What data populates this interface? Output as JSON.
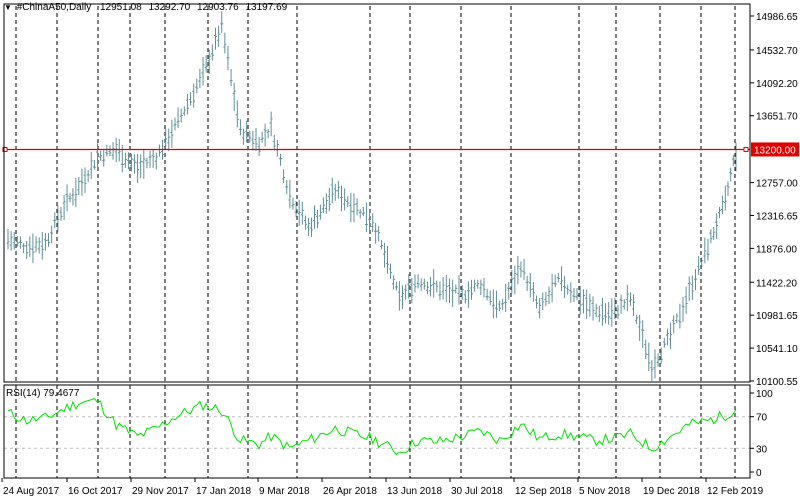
{
  "header": {
    "symbol": "#ChinaA50,Daily",
    "open": "12951.08",
    "high": "13292.70",
    "low": "12903.76",
    "close": "13197.69"
  },
  "indicator": {
    "name": "RSI(14)",
    "value": "79.4677"
  },
  "colors": {
    "price_bars": "#5f8f99",
    "level_line": "#e00000",
    "rsi_line": "#00e000",
    "grid": "#000000",
    "axis": "#000000",
    "rsi_level": "#c0c0c0"
  },
  "chart_data": [
    {
      "type": "bar",
      "style": "ohlc-bar",
      "title": "#ChinaA50,Daily",
      "x_tick_labels": [
        "24 Aug 2017",
        "16 Oct 2017",
        "29 Nov 2017",
        "17 Jan 2018",
        "9 Mar 2018",
        "26 Apr 2018",
        "13 Jun 2018",
        "30 Jul 2018",
        "12 Sep 2018",
        "5 Nov 2018",
        "19 Dec 2018",
        "12 Feb 2019"
      ],
      "y_tick_labels": [
        "14986.65",
        "14532.70",
        "14092.20",
        "13651.70",
        "12757.00",
        "12316.65",
        "11876.00",
        "11422.20",
        "10981.65",
        "10541.10",
        "10100.55"
      ],
      "ylim": [
        10100.55,
        14986.65
      ],
      "horizontal_level": {
        "value": 13200.0,
        "label": "13200.00"
      },
      "series": [
        {
          "x": [
            "2017-08-24",
            "2017-09-07",
            "2017-09-21",
            "2017-10-05",
            "2017-10-16",
            "2017-10-30",
            "2017-11-13",
            "2017-11-29",
            "2017-12-13",
            "2017-12-27",
            "2018-01-17",
            "2018-01-31",
            "2018-02-14",
            "2018-02-28",
            "2018-03-09",
            "2018-03-23",
            "2018-04-06",
            "2018-04-26",
            "2018-05-10",
            "2018-05-24",
            "2018-06-13",
            "2018-06-27",
            "2018-07-11",
            "2018-07-30",
            "2018-08-13",
            "2018-08-27",
            "2018-09-12",
            "2018-09-26",
            "2018-10-10",
            "2018-10-24",
            "2018-11-05",
            "2018-11-19",
            "2018-12-03",
            "2018-12-19",
            "2019-01-02",
            "2019-01-16",
            "2019-01-30",
            "2019-02-12",
            "2019-02-20"
          ],
          "values": [
            12000,
            11900,
            11950,
            12450,
            12700,
            13100,
            13200,
            12950,
            13100,
            13500,
            14200,
            14850,
            13450,
            13300,
            13500,
            12600,
            12150,
            12650,
            12450,
            12250,
            11200,
            11450,
            11350,
            11250,
            11400,
            11050,
            11650,
            11050,
            11450,
            11250,
            11050,
            11000,
            11200,
            10300,
            10700,
            11300,
            11900,
            12500,
            13198
          ]
        }
      ]
    },
    {
      "type": "line",
      "title": "RSI(14) 79.4677",
      "y_tick_labels": [
        "100",
        "70",
        "30",
        "0"
      ],
      "ylim": [
        0,
        100
      ],
      "levels": [
        70,
        30
      ],
      "series": [
        {
          "x": [
            "2017-08-24",
            "2017-09-07",
            "2017-09-21",
            "2017-10-05",
            "2017-10-16",
            "2017-10-30",
            "2017-11-13",
            "2017-11-29",
            "2017-12-13",
            "2017-12-27",
            "2018-01-17",
            "2018-01-31",
            "2018-02-14",
            "2018-02-28",
            "2018-03-09",
            "2018-03-23",
            "2018-04-06",
            "2018-04-26",
            "2018-05-10",
            "2018-05-24",
            "2018-06-13",
            "2018-06-27",
            "2018-07-11",
            "2018-07-30",
            "2018-08-13",
            "2018-08-27",
            "2018-09-12",
            "2018-09-26",
            "2018-10-10",
            "2018-10-24",
            "2018-11-05",
            "2018-11-19",
            "2018-12-03",
            "2018-12-19",
            "2019-01-02",
            "2019-01-16",
            "2019-01-30",
            "2019-02-12",
            "2019-02-20"
          ],
          "values": [
            75,
            65,
            68,
            80,
            88,
            90,
            60,
            45,
            55,
            70,
            85,
            78,
            40,
            35,
            45,
            30,
            40,
            55,
            48,
            42,
            25,
            40,
            38,
            45,
            52,
            40,
            60,
            42,
            48,
            45,
            40,
            42,
            48,
            30,
            45,
            60,
            65,
            72,
            79.4677
          ]
        }
      ]
    }
  ]
}
